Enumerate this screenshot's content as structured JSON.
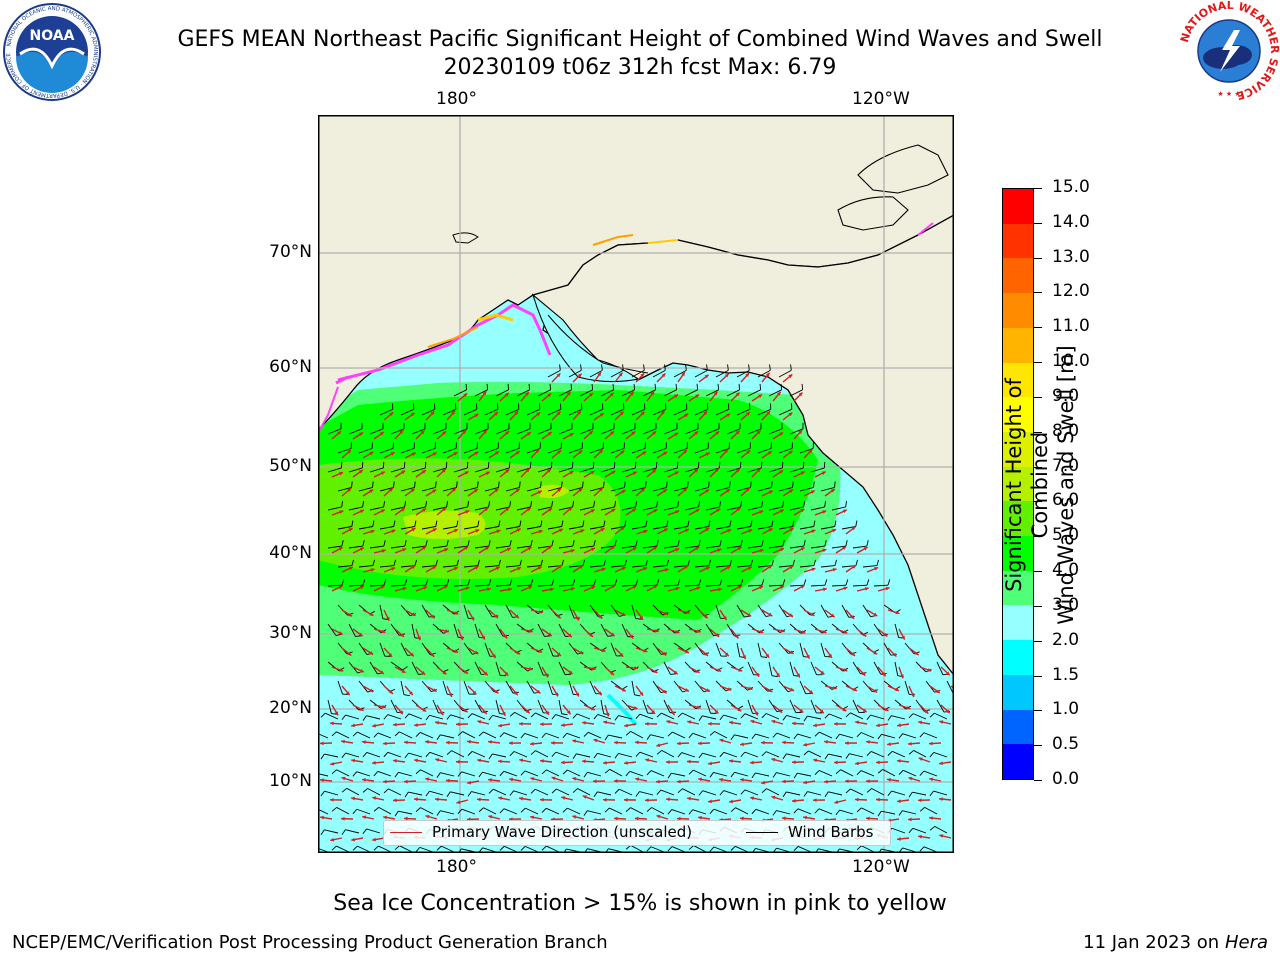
{
  "header": {
    "title_line1": "GEFS MEAN Northeast Pacific Significant Height of Combined Wind Waves and Swell",
    "title_line2": "20230109 t06z 312h fcst   Max: 6.79"
  },
  "logos": {
    "left": "NOAA",
    "left_ring": "NATIONAL OCEANIC AND ATMOSPHERIC ADMINISTRATION · U.S. DEPARTMENT OF COMMERCE",
    "right_ring": "NATIONAL WEATHER SERVICE"
  },
  "map": {
    "lon_labels_top": [
      "180°",
      "120°W"
    ],
    "lon_labels_bottom": [
      "180°",
      "120°W"
    ],
    "lat_labels": [
      "70°N",
      "60°N",
      "50°N",
      "40°N",
      "30°N",
      "20°N",
      "10°N"
    ]
  },
  "legend": {
    "wave_label": "Primary Wave Direction (unscaled)",
    "wind_label": "Wind Barbs",
    "wave_color": "#d62020",
    "wind_color": "#000000"
  },
  "colorbar": {
    "title": "Significant Height of Combined Wind Waves and Swell [m]",
    "title_line1": "Significant Height of Combined",
    "title_line2": "Wind Waves and Swell [m]",
    "tick_labels": [
      "0.0",
      "0.5",
      "1.0",
      "1.5",
      "2.0",
      "3.0",
      "4.0",
      "5.0",
      "6.0",
      "7.0",
      "8.0",
      "9.0",
      "10.0",
      "11.0",
      "12.0",
      "13.0",
      "14.0",
      "15.0"
    ],
    "colors": [
      "#0000ff",
      "#0064ff",
      "#00c8ff",
      "#00ffff",
      "#96ffff",
      "#50ff78",
      "#00ff00",
      "#60f000",
      "#b4f000",
      "#dcf000",
      "#ffff00",
      "#ffe600",
      "#ffb400",
      "#ff8c00",
      "#ff6400",
      "#ff3200",
      "#ff0000"
    ]
  },
  "footer": {
    "subtitle": "Sea Ice Concentration > 15% is shown in pink to yellow",
    "left": "NCEP/EMC/Verification Post Processing Product Generation Branch",
    "date": "11 Jan 2023 on ",
    "host": "Hera"
  }
}
